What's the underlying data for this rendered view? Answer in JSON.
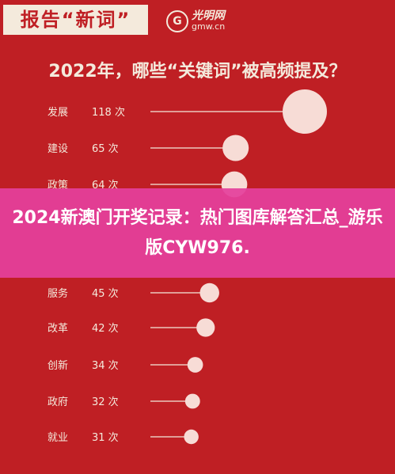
{
  "header": {
    "tag": "报告“新词”",
    "logo_mark": "G",
    "logo_top": "光明网",
    "logo_bottom": "gmw.cn"
  },
  "chart_data": {
    "type": "scatter",
    "title": "2022年，哪些“关键词”被高频提及？",
    "unit": "次",
    "categories": [
      "发展",
      "建设",
      "政策",
      "服务",
      "改革",
      "创新",
      "政府",
      "就业"
    ],
    "values": [
      118,
      65,
      64,
      45,
      42,
      34,
      32,
      31
    ],
    "value_labels": [
      "118 次",
      "65 次",
      "64 次",
      "45 次",
      "42 次",
      "34 次",
      "32 次",
      "31 次"
    ],
    "colors": {
      "bubble": "#f7dcd6",
      "line": "#f4eadc",
      "text": "#f4eadc",
      "background": "#bf1f24"
    }
  },
  "banner": {
    "text": "2024新澳门开奖记录：热门图库解答汇总_游乐版CYW976.",
    "color": "#e4409c"
  }
}
